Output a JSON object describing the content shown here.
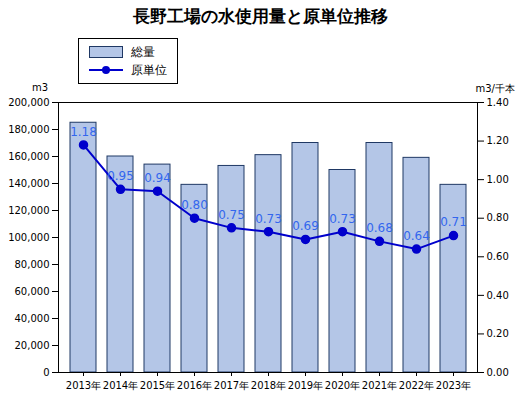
{
  "chart_data": {
    "type": "bar",
    "title": "長野工場の水使用量と原単位推移",
    "categories": [
      "2013年",
      "2014年",
      "2015年",
      "2016年",
      "2017年",
      "2018年",
      "2019年",
      "2020年",
      "2021年",
      "2022年",
      "2023年"
    ],
    "ylabel": "m3",
    "y2label": "m3/千本",
    "ylim": [
      0,
      200000
    ],
    "yticks": [
      0,
      {
        "value": 20000,
        "label": "20,000"
      },
      {
        "value": 40000,
        "label": "40,000"
      },
      {
        "value": 60000,
        "label": "60,000"
      },
      {
        "value": 80000,
        "label": "80,000"
      },
      {
        "value": 100000,
        "label": "100,000"
      },
      {
        "value": 120000,
        "label": "120,000"
      },
      {
        "value": 140000,
        "label": "140,000"
      },
      {
        "value": 160000,
        "label": "160,000"
      },
      {
        "value": 180000,
        "label": "180,000"
      },
      {
        "value": 200000,
        "label": "200,000"
      }
    ],
    "y2lim": [
      0,
      1.4
    ],
    "y2ticks": [
      {
        "value": 0,
        "label": "0.00"
      },
      {
        "value": 0.2,
        "label": "0.20"
      },
      {
        "value": 0.4,
        "label": "0.40"
      },
      {
        "value": 0.6,
        "label": "0.60"
      },
      {
        "value": 0.8,
        "label": "0.80"
      },
      {
        "value": 1.0,
        "label": "1.00"
      },
      {
        "value": 1.2,
        "label": "1.20"
      },
      {
        "value": 1.4,
        "label": "1.40"
      }
    ],
    "legend": "upper left",
    "series": [
      {
        "name": "総量",
        "type": "bar",
        "color": "#b4c6e7",
        "values": [
          185000,
          160000,
          154000,
          139000,
          153000,
          161000,
          170000,
          150000,
          170000,
          159000,
          139000
        ]
      },
      {
        "name": "原単位",
        "type": "line",
        "axis": "y2",
        "color": "#0000cc",
        "marker": "circle",
        "data_labels": true,
        "values": [
          1.18,
          0.95,
          0.94,
          0.8,
          0.75,
          0.73,
          0.69,
          0.73,
          0.68,
          0.64,
          0.71
        ],
        "value_labels": [
          "1.18",
          "0.95",
          "0.94",
          "0.80",
          "0.75",
          "0.73",
          "0.69",
          "0.73",
          "0.68",
          "0.64",
          "0.71"
        ]
      }
    ]
  }
}
